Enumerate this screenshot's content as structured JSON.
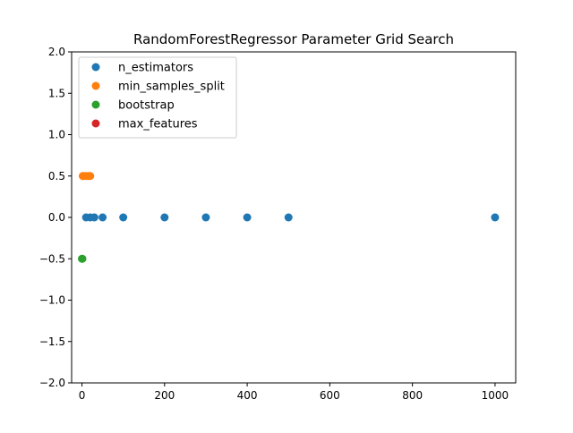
{
  "chart_data": {
    "type": "scatter",
    "title": "RandomForestRegressor Parameter Grid Search",
    "xlabel": "",
    "ylabel": "",
    "xlim": [
      -25,
      1050
    ],
    "ylim": [
      -2.0,
      2.0
    ],
    "x_ticks": [
      0,
      200,
      400,
      600,
      800,
      1000
    ],
    "x_tick_labels": [
      "0",
      "200",
      "400",
      "600",
      "800",
      "1000"
    ],
    "y_ticks": [
      -2.0,
      -1.5,
      -1.0,
      -0.5,
      0.0,
      0.5,
      1.0,
      1.5,
      2.0
    ],
    "y_tick_labels": [
      "−2.0",
      "−1.5",
      "−1.0",
      "−0.5",
      "0.0",
      "0.5",
      "1.0",
      "1.5",
      "2.0"
    ],
    "grid": false,
    "legend_position": "top-left",
    "series": [
      {
        "name": "n_estimators",
        "color": "#1f77b4",
        "x": [
          10,
          20,
          30,
          50,
          100,
          200,
          300,
          400,
          500,
          1000
        ],
        "y": [
          0,
          0,
          0,
          0,
          0,
          0,
          0,
          0,
          0,
          0
        ]
      },
      {
        "name": "min_samples_split",
        "color": "#ff7f0e",
        "x": [
          2,
          5,
          10,
          15,
          20
        ],
        "y": [
          0.5,
          0.5,
          0.5,
          0.5,
          0.5
        ]
      },
      {
        "name": "bootstrap",
        "color": "#2ca02c",
        "x": [
          0,
          1
        ],
        "y": [
          -0.5,
          -0.5
        ]
      },
      {
        "name": "max_features",
        "color": "#d62728",
        "x": [],
        "y": []
      }
    ]
  }
}
